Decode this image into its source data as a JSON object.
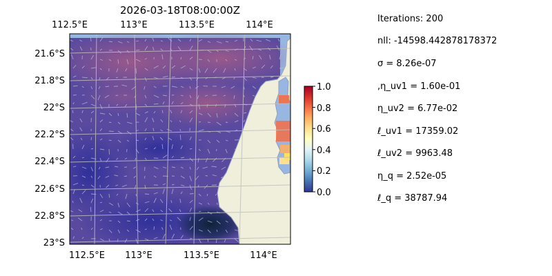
{
  "map": {
    "title": "2026-03-18T08:00:00Z",
    "top_lon_labels": [
      "112.5°E",
      "113°E",
      "113.5°E",
      "114°E"
    ],
    "bottom_lon_labels": [
      "112.5°E",
      "113°E",
      "113.5°E",
      "114°E"
    ],
    "lat_labels": [
      "21.6°S",
      "21.8°S",
      "22°S",
      "22.2°S",
      "22.4°S",
      "22.6°S",
      "22.8°S",
      "23°S"
    ]
  },
  "colorbar": {
    "ticks": [
      "0.0",
      "0.2",
      "0.4",
      "0.6",
      "0.8",
      "1.0"
    ],
    "range": [
      0,
      1
    ],
    "colormap": "RdYlBu_r"
  },
  "colors": {
    "land": "#efefdb",
    "ocean_background": "#97b6e1",
    "coast": "#9aa8c4",
    "grid": "#bfbfbf",
    "vector": "#b8c2d8"
  },
  "stats": [
    "Iterations: 200",
    "nll: -14598.442878178372",
    "σ = 8.26e-07",
    ",η_uv1 = 1.60e-01",
    "η_uv2 = 6.77e-02",
    "ℓ_uv1 = 17359.02",
    "ℓ_uv2 = 9963.48",
    "η_q = 2.52e-05",
    "ℓ_q = 38787.94"
  ]
}
